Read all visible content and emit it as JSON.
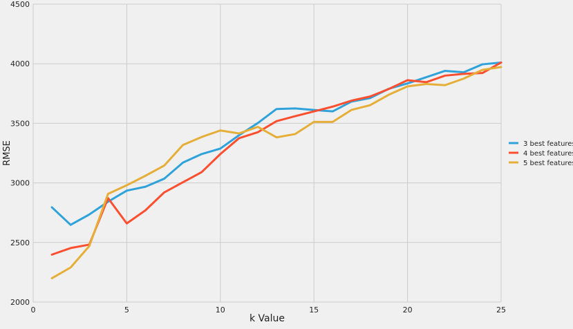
{
  "chart_data": {
    "type": "line",
    "title": "",
    "xlabel": "k Value",
    "ylabel": "RMSE",
    "xlim": [
      0,
      25
    ],
    "ylim": [
      2000,
      4500
    ],
    "xticks": [
      0,
      5,
      10,
      15,
      20,
      25
    ],
    "yticks": [
      2000,
      2500,
      3000,
      3500,
      4000,
      4500
    ],
    "grid": true,
    "legend_placement": "right",
    "x": [
      1,
      2,
      3,
      4,
      5,
      6,
      7,
      8,
      9,
      10,
      11,
      12,
      13,
      14,
      15,
      16,
      17,
      18,
      19,
      20,
      21,
      22,
      23,
      24,
      25
    ],
    "series": [
      {
        "name": "3 best features",
        "color": "#30a2da",
        "values": [
          2795,
          2648,
          2735,
          2842,
          2935,
          2968,
          3035,
          3170,
          3242,
          3288,
          3400,
          3502,
          3620,
          3625,
          3612,
          3600,
          3682,
          3712,
          3790,
          3835,
          3887,
          3940,
          3928,
          3995,
          4010
        ]
      },
      {
        "name": "4 best features",
        "color": "#fc4f30",
        "values": [
          2398,
          2453,
          2482,
          2872,
          2660,
          2770,
          2920,
          3005,
          3090,
          3242,
          3375,
          3425,
          3518,
          3560,
          3600,
          3640,
          3690,
          3725,
          3788,
          3862,
          3845,
          3900,
          3915,
          3922,
          4010
        ]
      },
      {
        "name": "5 best features",
        "color": "#e5ae38",
        "values": [
          2200,
          2290,
          2470,
          2908,
          2980,
          3060,
          3145,
          3318,
          3385,
          3440,
          3415,
          3470,
          3382,
          3410,
          3512,
          3512,
          3612,
          3652,
          3740,
          3810,
          3830,
          3820,
          3875,
          3948,
          3972
        ]
      }
    ]
  }
}
